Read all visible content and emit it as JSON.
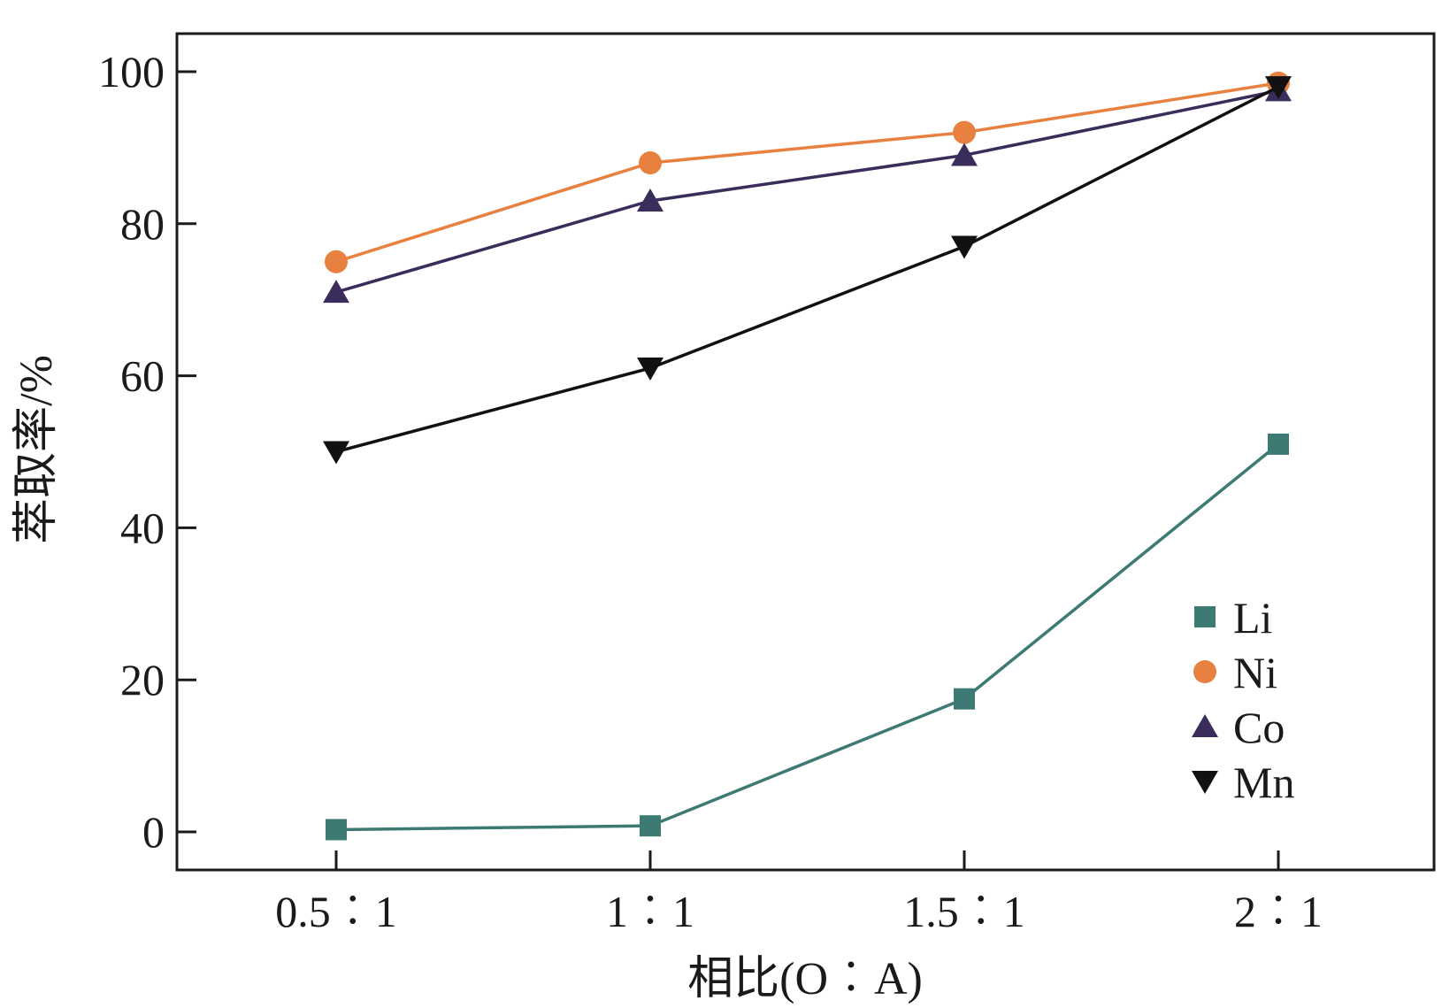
{
  "chart_data": {
    "type": "line",
    "title": "",
    "xlabel": "相比(O︰A)",
    "ylabel": "萃取率/%",
    "categories": [
      "0.5︰1",
      "1︰1",
      "1.5︰1",
      "2︰1"
    ],
    "ylim": [
      -5,
      105
    ],
    "yticks": [
      "0",
      "20",
      "40",
      "60",
      "80",
      "100"
    ],
    "grid": false,
    "legend_position": "bottom-right",
    "series": [
      {
        "name": "Li",
        "values": [
          0.3,
          0.8,
          17.5,
          51
        ],
        "color": "#3e7a74",
        "marker": "square"
      },
      {
        "name": "Ni",
        "values": [
          75,
          88,
          92,
          98.5
        ],
        "color": "#e8803f",
        "marker": "circle"
      },
      {
        "name": "Co",
        "values": [
          71,
          83,
          89,
          97.5
        ],
        "color": "#3a2d5c",
        "marker": "triangle-up"
      },
      {
        "name": "Mn",
        "values": [
          50,
          61,
          77,
          98
        ],
        "color": "#111111",
        "marker": "triangle-down"
      }
    ]
  }
}
